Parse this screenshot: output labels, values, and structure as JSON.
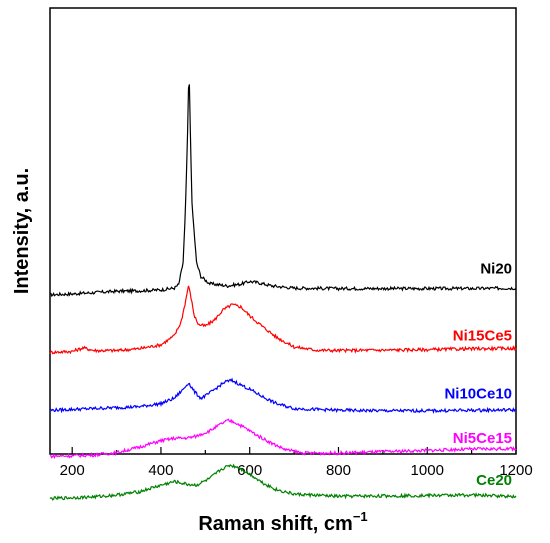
{
  "chart_data": {
    "type": "line",
    "title": "",
    "xlabel": "Raman shift, cm",
    "xlabel_superscript": "−1",
    "ylabel": "Intensity, a.u.",
    "xlim": [
      150,
      1200
    ],
    "ylim": [
      0,
      1
    ],
    "x_ticks": [
      200,
      400,
      600,
      800,
      1000,
      1200
    ],
    "x_tick_labels": [
      "200",
      "400",
      "600",
      "800",
      "1000",
      "1200"
    ],
    "y_ticks_shown": false,
    "grid": false,
    "legend": "inline-labels-right",
    "series": [
      {
        "name": "Ni20",
        "color": "#000000",
        "points": [
          [
            150,
            0.357
          ],
          [
            200,
            0.359
          ],
          [
            250,
            0.362
          ],
          [
            300,
            0.365
          ],
          [
            350,
            0.366
          ],
          [
            400,
            0.368
          ],
          [
            430,
            0.372
          ],
          [
            440,
            0.38
          ],
          [
            450,
            0.43
          ],
          [
            455,
            0.54
          ],
          [
            460,
            0.72
          ],
          [
            463,
            0.87
          ],
          [
            466,
            0.74
          ],
          [
            470,
            0.56
          ],
          [
            480,
            0.43
          ],
          [
            490,
            0.398
          ],
          [
            510,
            0.382
          ],
          [
            550,
            0.377
          ],
          [
            580,
            0.381
          ],
          [
            600,
            0.387
          ],
          [
            620,
            0.384
          ],
          [
            650,
            0.377
          ],
          [
            700,
            0.372
          ],
          [
            800,
            0.371
          ],
          [
            900,
            0.371
          ],
          [
            1000,
            0.371
          ],
          [
            1100,
            0.371
          ],
          [
            1200,
            0.372
          ]
        ]
      },
      {
        "name": "Ni15Ce5",
        "color": "#ff0000",
        "points": [
          [
            150,
            0.228
          ],
          [
            200,
            0.23
          ],
          [
            225,
            0.238
          ],
          [
            250,
            0.232
          ],
          [
            300,
            0.232
          ],
          [
            350,
            0.236
          ],
          [
            400,
            0.245
          ],
          [
            430,
            0.265
          ],
          [
            445,
            0.295
          ],
          [
            455,
            0.34
          ],
          [
            462,
            0.378
          ],
          [
            468,
            0.35
          ],
          [
            475,
            0.31
          ],
          [
            485,
            0.29
          ],
          [
            500,
            0.287
          ],
          [
            520,
            0.3
          ],
          [
            540,
            0.323
          ],
          [
            560,
            0.335
          ],
          [
            580,
            0.33
          ],
          [
            600,
            0.31
          ],
          [
            630,
            0.285
          ],
          [
            660,
            0.262
          ],
          [
            700,
            0.24
          ],
          [
            750,
            0.233
          ],
          [
            800,
            0.232
          ],
          [
            900,
            0.233
          ],
          [
            1000,
            0.234
          ],
          [
            1100,
            0.236
          ],
          [
            1200,
            0.237
          ]
        ]
      },
      {
        "name": "Ni10Ce10",
        "color": "#0000ff",
        "points": [
          [
            150,
            0.098
          ],
          [
            200,
            0.1
          ],
          [
            250,
            0.102
          ],
          [
            300,
            0.104
          ],
          [
            350,
            0.106
          ],
          [
            400,
            0.113
          ],
          [
            430,
            0.125
          ],
          [
            450,
            0.145
          ],
          [
            462,
            0.16
          ],
          [
            475,
            0.14
          ],
          [
            490,
            0.125
          ],
          [
            505,
            0.133
          ],
          [
            525,
            0.148
          ],
          [
            545,
            0.162
          ],
          [
            560,
            0.165
          ],
          [
            580,
            0.155
          ],
          [
            600,
            0.145
          ],
          [
            630,
            0.128
          ],
          [
            660,
            0.113
          ],
          [
            700,
            0.102
          ],
          [
            800,
            0.098
          ],
          [
            900,
            0.097
          ],
          [
            1000,
            0.097
          ],
          [
            1100,
            0.098
          ],
          [
            1200,
            0.099
          ]
        ]
      },
      {
        "name": "Ni5Ce15",
        "color": "#ff00ff",
        "points": [
          [
            150,
            -0.005
          ],
          [
            200,
            -0.004
          ],
          [
            250,
            -0.002
          ],
          [
            300,
            0.003
          ],
          [
            350,
            0.015
          ],
          [
            400,
            0.03
          ],
          [
            430,
            0.035
          ],
          [
            460,
            0.036
          ],
          [
            480,
            0.04
          ],
          [
            510,
            0.052
          ],
          [
            535,
            0.067
          ],
          [
            550,
            0.075
          ],
          [
            565,
            0.072
          ],
          [
            590,
            0.058
          ],
          [
            620,
            0.04
          ],
          [
            650,
            0.024
          ],
          [
            680,
            0.01
          ],
          [
            720,
            0.002
          ],
          [
            800,
            0.002
          ],
          [
            900,
            0.005
          ],
          [
            1000,
            0.008
          ],
          [
            1100,
            0.011
          ],
          [
            1200,
            0.012
          ]
        ]
      },
      {
        "name": "Ce20",
        "color": "#008000",
        "points": [
          [
            150,
            -0.1
          ],
          [
            200,
            -0.098
          ],
          [
            250,
            -0.096
          ],
          [
            300,
            -0.092
          ],
          [
            350,
            -0.085
          ],
          [
            400,
            -0.07
          ],
          [
            430,
            -0.062
          ],
          [
            460,
            -0.068
          ],
          [
            480,
            -0.07
          ],
          [
            510,
            -0.055
          ],
          [
            535,
            -0.035
          ],
          [
            555,
            -0.025
          ],
          [
            575,
            -0.03
          ],
          [
            600,
            -0.045
          ],
          [
            630,
            -0.065
          ],
          [
            660,
            -0.08
          ],
          [
            700,
            -0.09
          ],
          [
            800,
            -0.095
          ],
          [
            900,
            -0.094
          ],
          [
            1000,
            -0.093
          ],
          [
            1100,
            -0.092
          ],
          [
            1200,
            -0.095
          ]
        ]
      }
    ]
  }
}
